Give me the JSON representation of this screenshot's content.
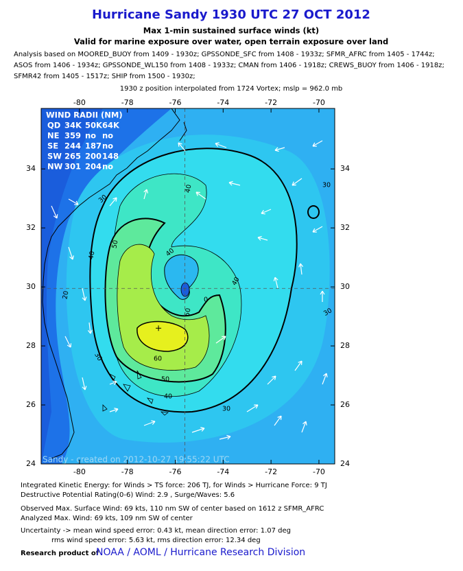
{
  "header": {
    "title": "Hurricane Sandy 1930 UTC 27 OCT 2012",
    "subtitle": "Max 1-min sustained surface winds (kt)",
    "validity": "Valid for marine exposure over water, open terrain exposure over land",
    "analysis": [
      "Analysis based on MOORED_BUOY from 1409 - 1930z; GPSSONDE_SFC from 1408 - 1933z; SFMR_AFRC from 1405 - 1744z;",
      "ASOS from 1406 - 1934z; GPSSONDE_WL150 from 1408 - 1933z; CMAN from 1406 - 1918z; CREWS_BUOY from 1406 - 1918z;",
      "SFMR42 from 1405 - 1517z; SHIP from 1500 - 1930z;"
    ],
    "position_note": "1930 z position interpolated from 1724 Vortex; mslp = 962.0 mb"
  },
  "map": {
    "xlim": [
      -81.6,
      -69.34
    ],
    "ylim": [
      24,
      36.05
    ],
    "xticks": [
      -80,
      -78,
      -76,
      -74,
      -72,
      -70
    ],
    "yticks": [
      24,
      26,
      28,
      30,
      32,
      34
    ],
    "center": [
      -75.6,
      29.95
    ],
    "max_wind_location": [
      -76.7,
      28.6
    ],
    "contour_labels": [
      40,
      30,
      30,
      40,
      50,
      20,
      40,
      40,
      0,
      50,
      30,
      30,
      60,
      50,
      40,
      30
    ],
    "wind_radii": {
      "title": "WIND RADII (NM)",
      "columns": [
        "QD",
        "34K",
        "50K",
        "64K"
      ],
      "rows": [
        [
          "NE",
          359,
          "no",
          "no"
        ],
        [
          "SE",
          244,
          187,
          "no"
        ],
        [
          "SW",
          265,
          200,
          148
        ],
        [
          "NW",
          301,
          204,
          "no"
        ]
      ]
    },
    "watermark": "Sandy - created on 2012-10-27 19:55:22 UTC"
  },
  "footer": {
    "lines": [
      "Integrated Kinetic Energy: for Winds > TS force: 206 TJ, for Winds > Hurricane Force: 9 TJ",
      "Destructive Potential Rating(0-6)  Wind: 2.9 , Surge/Waves: 5.6",
      "Observed Max. Surface Wind: 69 kts, 110 nm SW of center based on 1612 z SFMR_AFRC",
      "Analyzed Max. Wind: 69 kts, 109 nm  SW of center",
      "Uncertainty -> mean wind speed error: 0.43 kt, mean direction error: 1.07 deg",
      "rms wind speed error: 5.63 kt, rms direction error: 12.34 deg"
    ],
    "credit_prefix": "Research product of",
    "credit": "NOAA / AOML / Hurricane Research Division"
  }
}
